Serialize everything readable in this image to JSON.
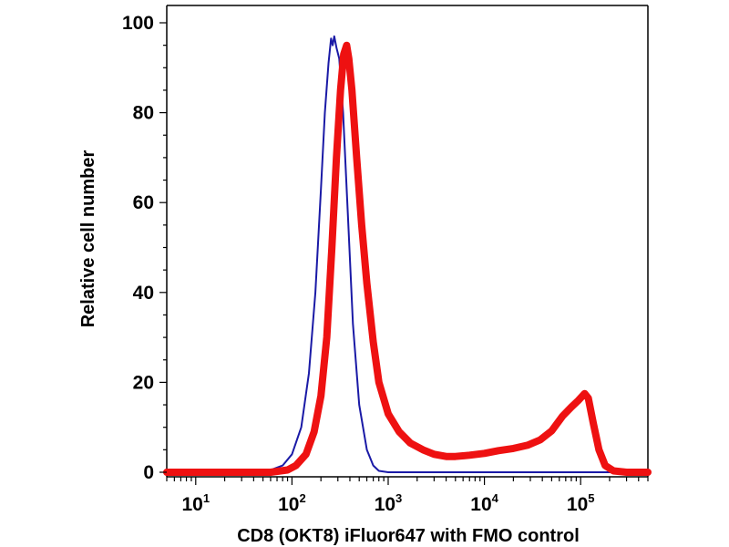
{
  "chart_data": {
    "type": "line",
    "title": "",
    "xlabel": "CD8 (OKT8) iFluor647 with FMO control",
    "ylabel": "Relative cell number",
    "x_scale": "log10",
    "xlim": [
      5,
      500000
    ],
    "ylim": [
      0,
      100
    ],
    "x_ticks": [
      {
        "value": 10,
        "base": "10",
        "exp": "1"
      },
      {
        "value": 100,
        "base": "10",
        "exp": "2"
      },
      {
        "value": 1000,
        "base": "10",
        "exp": "3"
      },
      {
        "value": 10000,
        "base": "10",
        "exp": "4"
      },
      {
        "value": 100000,
        "base": "10",
        "exp": "5"
      }
    ],
    "y_ticks": [
      {
        "value": 0,
        "label": "0"
      },
      {
        "value": 20,
        "label": "20"
      },
      {
        "value": 40,
        "label": "40"
      },
      {
        "value": 60,
        "label": "60"
      },
      {
        "value": 80,
        "label": "80"
      },
      {
        "value": 100,
        "label": "100"
      }
    ],
    "grid": false,
    "legend": "none",
    "series": [
      {
        "name": "FMO control",
        "color": "#1a1aa6",
        "points": [
          [
            5,
            0
          ],
          [
            30,
            0
          ],
          [
            60,
            0.5
          ],
          [
            80,
            1.5
          ],
          [
            100,
            4
          ],
          [
            125,
            10
          ],
          [
            150,
            22
          ],
          [
            175,
            40
          ],
          [
            200,
            63
          ],
          [
            220,
            80
          ],
          [
            240,
            91
          ],
          [
            255,
            96.5
          ],
          [
            265,
            95
          ],
          [
            275,
            97
          ],
          [
            290,
            94.5
          ],
          [
            310,
            92
          ],
          [
            340,
            80
          ],
          [
            380,
            58
          ],
          [
            430,
            33
          ],
          [
            500,
            15
          ],
          [
            600,
            5
          ],
          [
            700,
            1.5
          ],
          [
            800,
            0.3
          ],
          [
            1000,
            0
          ],
          [
            500000,
            0
          ]
        ]
      },
      {
        "name": "CD8 (OKT8) iFluor647",
        "color": "#ee1111",
        "points": [
          [
            5,
            0
          ],
          [
            60,
            0
          ],
          [
            90,
            0.5
          ],
          [
            110,
            1.5
          ],
          [
            140,
            4
          ],
          [
            170,
            9
          ],
          [
            200,
            17
          ],
          [
            230,
            30
          ],
          [
            260,
            50
          ],
          [
            290,
            70
          ],
          [
            320,
            85
          ],
          [
            345,
            93
          ],
          [
            370,
            95
          ],
          [
            390,
            92
          ],
          [
            420,
            85
          ],
          [
            470,
            70
          ],
          [
            530,
            55
          ],
          [
            600,
            42
          ],
          [
            700,
            29
          ],
          [
            800,
            20
          ],
          [
            1000,
            13
          ],
          [
            1300,
            9
          ],
          [
            1700,
            6.5
          ],
          [
            2300,
            5
          ],
          [
            3000,
            4
          ],
          [
            4000,
            3.5
          ],
          [
            5000,
            3.5
          ],
          [
            7000,
            3.8
          ],
          [
            10000,
            4.2
          ],
          [
            14000,
            4.8
          ],
          [
            20000,
            5.3
          ],
          [
            28000,
            6
          ],
          [
            38000,
            7.2
          ],
          [
            50000,
            9.2
          ],
          [
            65000,
            12.5
          ],
          [
            80000,
            14.5
          ],
          [
            95000,
            16
          ],
          [
            110000,
            17.5
          ],
          [
            120000,
            16.5
          ],
          [
            135000,
            11
          ],
          [
            155000,
            5
          ],
          [
            180000,
            1.5
          ],
          [
            220000,
            0.3
          ],
          [
            300000,
            0
          ],
          [
            500000,
            0
          ]
        ]
      }
    ]
  }
}
